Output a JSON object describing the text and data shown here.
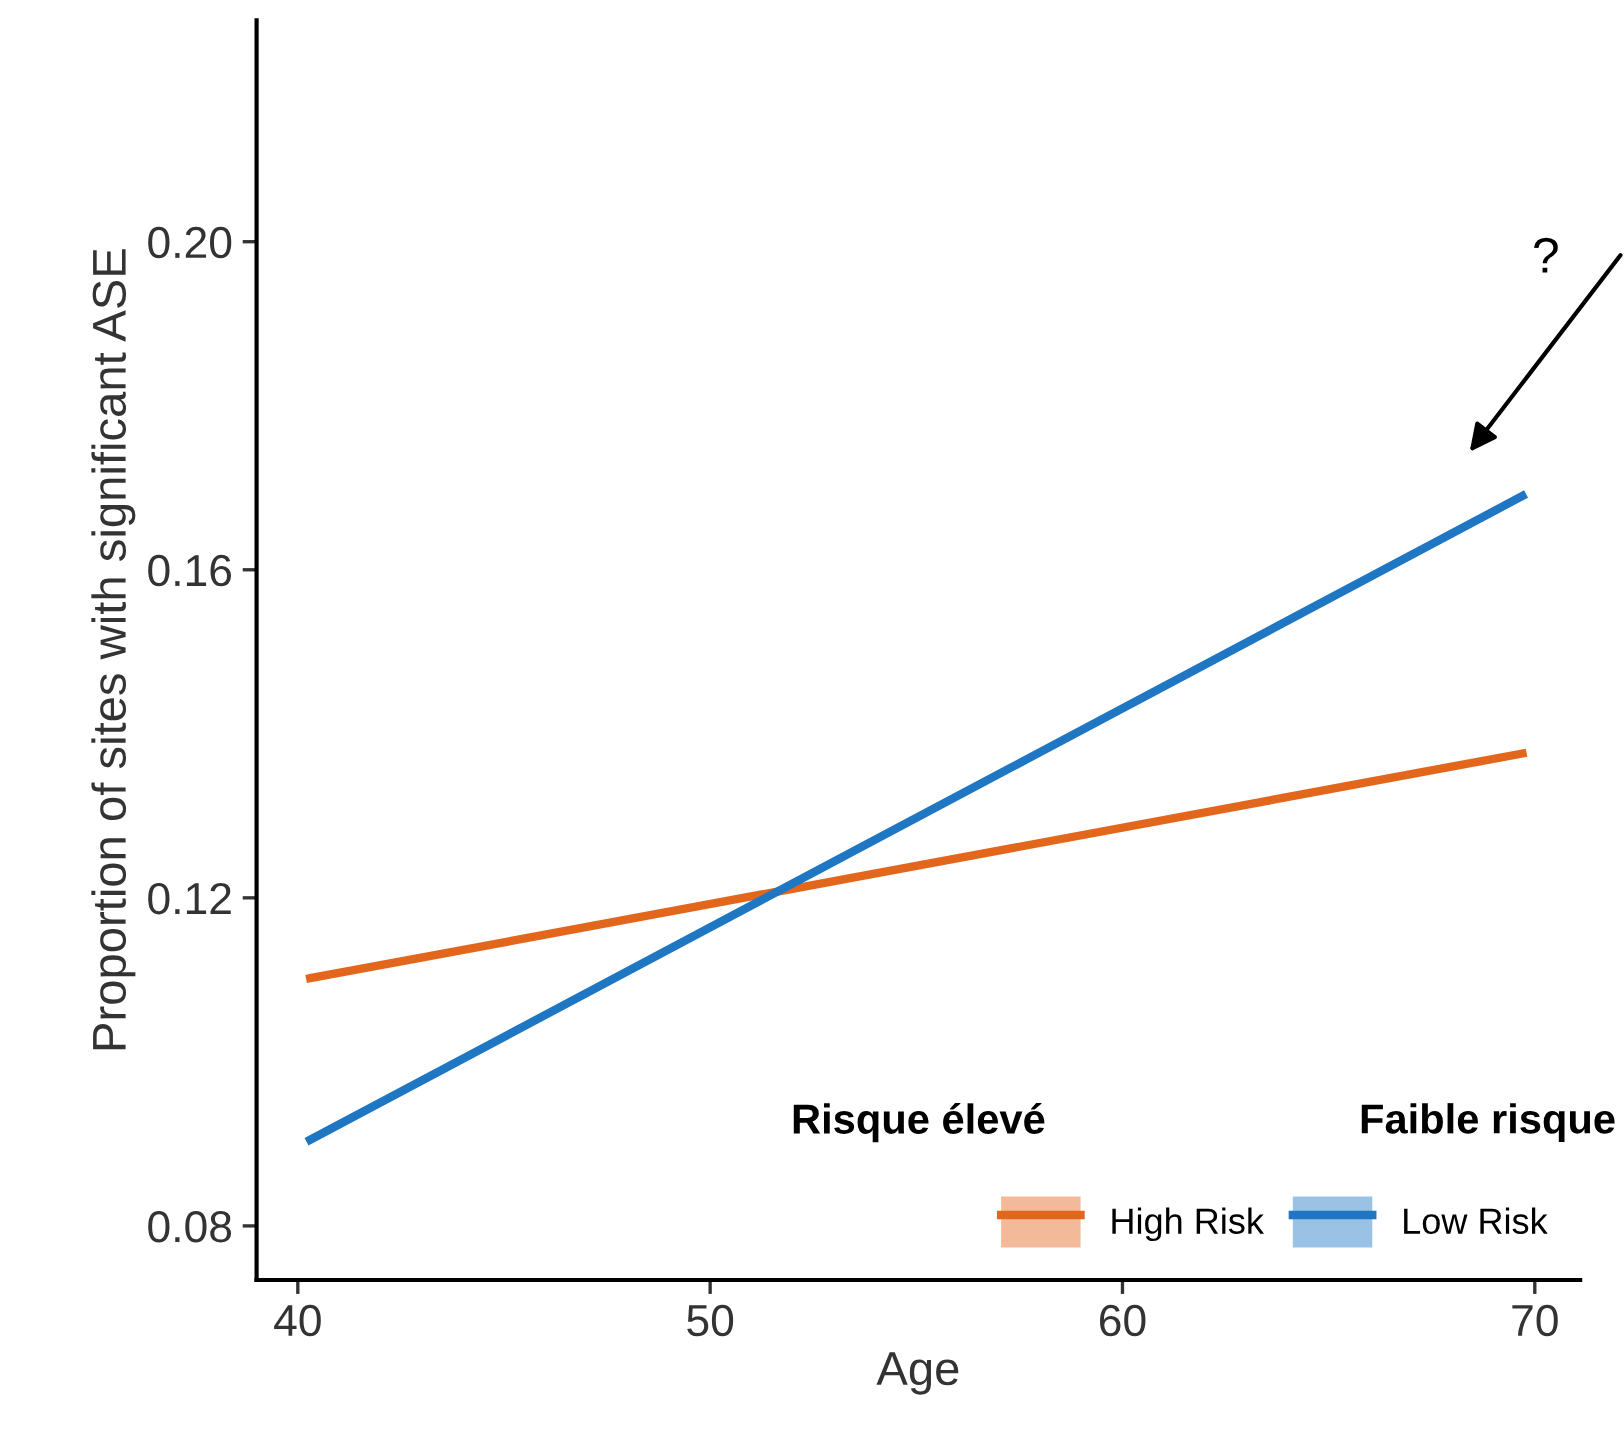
{
  "chart_data": {
    "type": "line",
    "xlabel": "Age",
    "ylabel": "Proportion of sites with significant ASE",
    "x": [
      40.3,
      69.7
    ],
    "series": [
      {
        "name": "High Risk",
        "color": "#e2671c",
        "values": [
          0.1102,
          0.1376
        ]
      },
      {
        "name": "Low Risk",
        "color": "#1f77c4",
        "values": [
          0.0905,
          0.169
        ]
      }
    ],
    "xlim": [
      39.0,
      71.1
    ],
    "ylim": [
      0.0734,
      0.227
    ],
    "xticks": [
      40,
      50,
      60,
      70
    ],
    "yticks": [
      {
        "value": 0.08,
        "label": "0.08"
      },
      {
        "value": 0.12,
        "label": "0.12"
      },
      {
        "value": 0.16,
        "label": "0.16"
      },
      {
        "value": 0.2,
        "label": "0.20"
      }
    ],
    "grid": false,
    "legend": "bottom right",
    "marker": "none",
    "line_style": "solid",
    "annotations": [
      "Risque élevé",
      "Faible risque",
      "?"
    ]
  }
}
